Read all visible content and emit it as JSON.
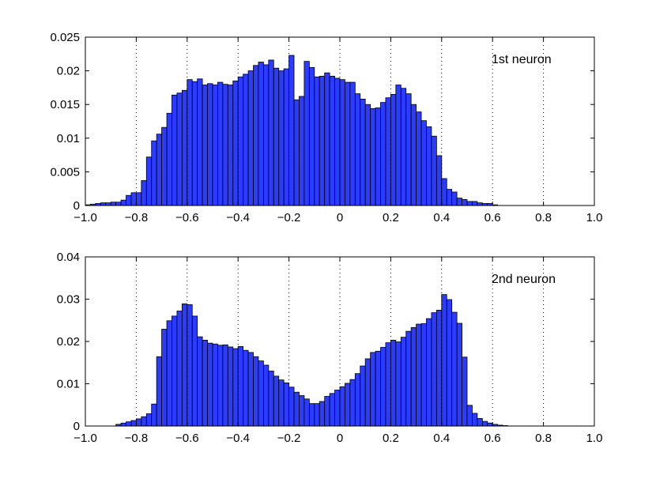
{
  "chart_data": [
    {
      "type": "bar",
      "label": "1st neuron",
      "xlim": [
        -1.0,
        1.0
      ],
      "ylim": [
        0,
        0.025
      ],
      "grid": "vertical dotted lines at x = -0.8, -0.6, -0.4, -0.2, 0, 0.2, 0.4, 0.6, 0.8",
      "x_ticks": [
        "-1.0",
        "-0.8",
        "-0.6",
        "-0.4",
        "-0.2",
        "0",
        "0.2",
        "0.4",
        "0.6",
        "0.8",
        "1.0"
      ],
      "y_ticks": [
        "0",
        "0.005",
        "0.01",
        "0.015",
        "0.02",
        "0.025"
      ],
      "bin_start": -0.99,
      "bin_width": 0.02,
      "values": [
        0.0001,
        0.0002,
        0.0003,
        0.0004,
        0.0004,
        0.0005,
        0.0005,
        0.0008,
        0.0015,
        0.0019,
        0.0019,
        0.0037,
        0.0072,
        0.0096,
        0.0106,
        0.0116,
        0.0137,
        0.0164,
        0.0167,
        0.0171,
        0.0187,
        0.0184,
        0.0188,
        0.0179,
        0.0181,
        0.0179,
        0.0183,
        0.018,
        0.0179,
        0.0185,
        0.0191,
        0.0195,
        0.02,
        0.0208,
        0.0213,
        0.0209,
        0.0216,
        0.0204,
        0.02,
        0.0203,
        0.0223,
        0.0157,
        0.0162,
        0.0214,
        0.0205,
        0.0191,
        0.0192,
        0.0197,
        0.0192,
        0.0189,
        0.0187,
        0.0183,
        0.0183,
        0.0166,
        0.0158,
        0.015,
        0.0144,
        0.0145,
        0.0153,
        0.016,
        0.0165,
        0.0179,
        0.0174,
        0.0166,
        0.015,
        0.0139,
        0.0126,
        0.0117,
        0.0103,
        0.0074,
        0.004,
        0.0024,
        0.002,
        0.0011,
        0.0009,
        0.0006,
        0.0006,
        0.0004,
        0.0003,
        0.0003,
        0.0001
      ]
    },
    {
      "type": "bar",
      "label": "2nd neuron",
      "xlim": [
        -1.0,
        1.0
      ],
      "ylim": [
        0,
        0.04
      ],
      "grid": "vertical dotted lines at x = -0.8, -0.6, -0.4, -0.2, 0, 0.2, 0.4, 0.6, 0.8",
      "x_ticks": [
        "-1.0",
        "-0.8",
        "-0.6",
        "-0.4",
        "-0.2",
        "0",
        "0.2",
        "0.4",
        "0.6",
        "0.8",
        "1.0"
      ],
      "y_ticks": [
        "0",
        "0.01",
        "0.02",
        "0.03",
        "0.04"
      ],
      "bin_start": -0.99,
      "bin_width": 0.02,
      "values": [
        0,
        0,
        0,
        0,
        0,
        0,
        0.0004,
        0.0007,
        0.001,
        0.0013,
        0.0017,
        0.0022,
        0.0029,
        0.0052,
        0.0164,
        0.0229,
        0.0249,
        0.026,
        0.0272,
        0.0289,
        0.0287,
        0.026,
        0.0211,
        0.0203,
        0.0196,
        0.0194,
        0.0191,
        0.0192,
        0.0187,
        0.0183,
        0.0188,
        0.0179,
        0.0174,
        0.0164,
        0.0154,
        0.0144,
        0.013,
        0.0118,
        0.0109,
        0.0102,
        0.0092,
        0.008,
        0.0072,
        0.0064,
        0.0053,
        0.0053,
        0.0058,
        0.007,
        0.0077,
        0.0085,
        0.0093,
        0.0101,
        0.011,
        0.0124,
        0.0142,
        0.0159,
        0.0174,
        0.0177,
        0.0186,
        0.0197,
        0.0203,
        0.0199,
        0.021,
        0.0224,
        0.0233,
        0.0241,
        0.0242,
        0.0254,
        0.0268,
        0.0274,
        0.0311,
        0.0299,
        0.0269,
        0.0243,
        0.0163,
        0.0049,
        0.003,
        0.0018,
        0.0011,
        0.0007,
        0.0004,
        0.0002,
        0.0001,
        0,
        0,
        0
      ]
    }
  ]
}
